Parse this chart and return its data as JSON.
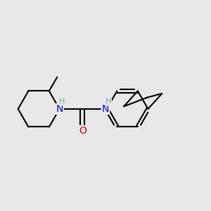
{
  "bg_color": "#e8e8e8",
  "bond_color": "#000000",
  "bond_width": 1.5,
  "N_color": "#0000ff",
  "O_color": "#cc0000",
  "H_color": "#5aafaf",
  "font_size_atom": 10,
  "font_size_H": 8,
  "xlim": [
    -3.5,
    5.5
  ],
  "ylim": [
    -2.2,
    2.5
  ]
}
